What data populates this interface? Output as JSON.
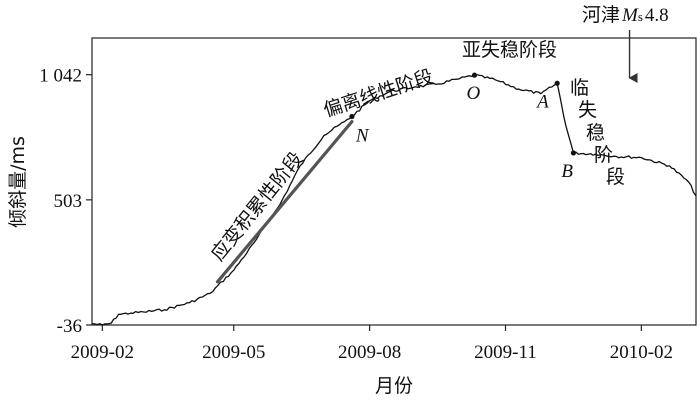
{
  "chart_data": {
    "type": "line",
    "xlabel": "月份",
    "ylabel": "倾斜量/ms",
    "x_tick_labels": [
      "2009-02",
      "2009-05",
      "2009-08",
      "2009-11",
      "2010-02"
    ],
    "x_ticks": [
      "2009-02-01",
      "2009-05-01",
      "2009-08-01",
      "2009-11-01",
      "2010-02-01"
    ],
    "y_ticks": [
      -36,
      503,
      1042
    ],
    "y_tick_labels": [
      "-36",
      "503",
      "1 042"
    ],
    "xlim": [
      "2009-01-25",
      "2010-03-10"
    ],
    "ylim": [
      -36,
      1200
    ],
    "grid": false,
    "series": [
      {
        "values": [
          [
            "2009-01-25",
            -30
          ],
          [
            "2009-02-01",
            -36
          ],
          [
            "2009-02-07",
            -28
          ],
          [
            "2009-02-12",
            10
          ],
          [
            "2009-02-20",
            15
          ],
          [
            "2009-03-01",
            20
          ],
          [
            "2009-03-15",
            30
          ],
          [
            "2009-04-01",
            60
          ],
          [
            "2009-04-15",
            100
          ],
          [
            "2009-05-01",
            200
          ],
          [
            "2009-05-15",
            320
          ],
          [
            "2009-06-01",
            480
          ],
          [
            "2009-06-15",
            650
          ],
          [
            "2009-07-01",
            780
          ],
          [
            "2009-07-15",
            840
          ],
          [
            "2009-07-20",
            862
          ],
          [
            "2009-08-01",
            930
          ],
          [
            "2009-08-15",
            970
          ],
          [
            "2009-09-01",
            990
          ],
          [
            "2009-09-15",
            1000
          ],
          [
            "2009-10-01",
            1025
          ],
          [
            "2009-10-11",
            1040
          ],
          [
            "2009-10-25",
            1020
          ],
          [
            "2009-11-10",
            980
          ],
          [
            "2009-11-25",
            960
          ],
          [
            "2009-12-06",
            1005
          ],
          [
            "2009-12-12",
            820
          ],
          [
            "2009-12-17",
            705
          ],
          [
            "2010-01-01",
            700
          ],
          [
            "2010-01-15",
            690
          ],
          [
            "2010-02-01",
            685
          ],
          [
            "2010-02-20",
            650
          ],
          [
            "2010-03-05",
            580
          ],
          [
            "2010-03-10",
            520
          ]
        ]
      }
    ],
    "fit_line": {
      "start": [
        "2009-04-20",
        150
      ],
      "end": [
        "2009-07-20",
        840
      ]
    },
    "points": [
      {
        "label": "N",
        "x": "2009-07-20",
        "y": 862
      },
      {
        "label": "O",
        "x": "2009-10-11",
        "y": 1040
      },
      {
        "label": "A",
        "x": "2009-12-06",
        "y": 1005
      },
      {
        "label": "B",
        "x": "2009-12-17",
        "y": 705
      }
    ],
    "annotations": {
      "stage1": "应变积累性阶段",
      "stage2": "偏离线性阶段",
      "stage3": "亚失稳阶段",
      "stage4": "临失稳阶段",
      "earthquake_prefix": "河津",
      "earthquake_ms": "M",
      "earthquake_s": "s",
      "earthquake_mag": "4.8",
      "earthquake_date": "2010-01-24"
    }
  }
}
